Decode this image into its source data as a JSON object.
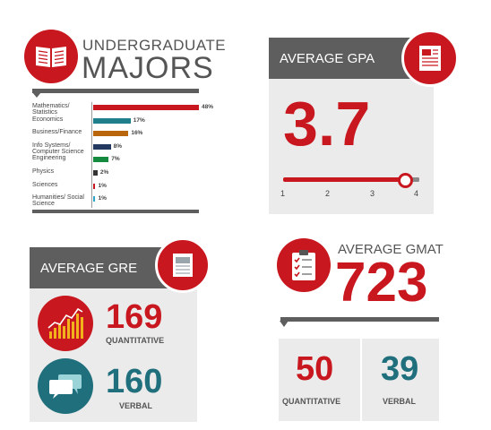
{
  "majors": {
    "title_line1": "UNDERGRADUATE",
    "title_line2": "MAJORS",
    "items": [
      {
        "label": "Mathematics/ Statistics",
        "value": 48,
        "display": "48%",
        "color": "#c8171e"
      },
      {
        "label": "Economics",
        "value": 17,
        "display": "17%",
        "color": "#1f7f8a"
      },
      {
        "label": "Business/Finance",
        "value": 16,
        "display": "16%",
        "color": "#b8650c"
      },
      {
        "label": "Info Systems/ Computer Science",
        "value": 8,
        "display": "8%",
        "color": "#23395f"
      },
      {
        "label": "Engineering",
        "value": 7,
        "display": "7%",
        "color": "#138a3e"
      },
      {
        "label": "Physics",
        "value": 2,
        "display": "2%",
        "color": "#333333"
      },
      {
        "label": "Sciences",
        "value": 1,
        "display": "1%",
        "color": "#c8171e"
      },
      {
        "label": "Humanities/ Social Science",
        "value": 1,
        "display": "1%",
        "color": "#29a3c7"
      }
    ]
  },
  "gpa": {
    "title": "AVERAGE GPA",
    "value": "3.7",
    "slider_value": 3.7,
    "ticks": [
      "1",
      "2",
      "3",
      "4"
    ]
  },
  "gre": {
    "title": "AVERAGE GRE",
    "quant_value": "169",
    "quant_label": "QUANTITATIVE",
    "verbal_value": "160",
    "verbal_label": "VERBAL"
  },
  "gmat": {
    "title": "AVERAGE GMAT",
    "value": "723",
    "quant_value": "50",
    "quant_label": "QUANTITATIVE",
    "verbal_value": "39",
    "verbal_label": "VERBAL"
  },
  "colors": {
    "red": "#c8171e",
    "teal": "#1f6f7c",
    "gray": "#5e5e5e",
    "light_gray": "#ebebeb"
  }
}
